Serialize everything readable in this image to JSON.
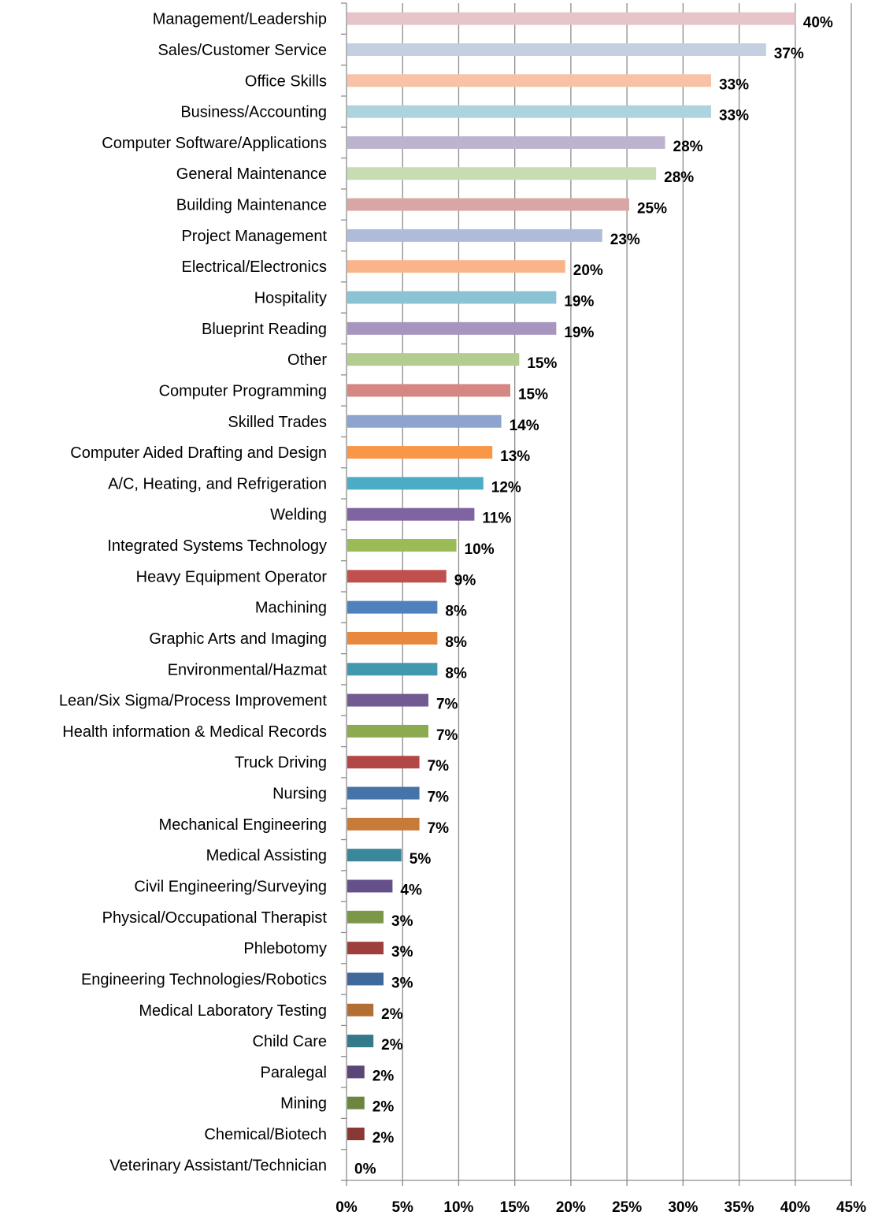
{
  "chart_data": {
    "type": "bar",
    "orientation": "horizontal",
    "title": "",
    "xlabel": "",
    "ylabel": "",
    "xlim": [
      0,
      45
    ],
    "x_ticks": [
      "0%",
      "5%",
      "10%",
      "15%",
      "20%",
      "25%",
      "30%",
      "35%",
      "40%",
      "45%"
    ],
    "grid": "vertical major gridlines",
    "legend": "none",
    "categories": [
      "Management/Leadership",
      "Sales/Customer Service",
      "Office Skills",
      "Business/Accounting",
      "Computer Software/Applications",
      "General Maintenance",
      "Building Maintenance",
      "Project Management",
      "Electrical/Electronics",
      "Hospitality",
      "Blueprint Reading",
      "Other",
      "Computer Programming",
      "Skilled Trades",
      "Computer Aided Drafting and Design",
      "A/C, Heating, and Refrigeration",
      "Welding",
      "Integrated Systems Technology",
      "Heavy Equipment Operator",
      "Machining",
      "Graphic Arts and Imaging",
      "Environmental/Hazmat",
      "Lean/Six Sigma/Process Improvement",
      "Health information & Medical Records",
      "Truck Driving",
      "Nursing",
      "Mechanical Engineering",
      "Medical Assisting",
      "Civil Engineering/Surveying",
      "Physical/Occupational Therapist",
      "Phlebotomy",
      "Engineering Technologies/Robotics",
      "Medical Laboratory Testing",
      "Child Care",
      "Paralegal",
      "Mining",
      "Chemical/Biotech",
      "Veterinary Assistant/Technician"
    ],
    "values": [
      40,
      37.4,
      32.5,
      32.5,
      28.4,
      27.6,
      25.2,
      22.8,
      19.5,
      18.7,
      18.7,
      15.4,
      14.6,
      13.8,
      13.0,
      12.2,
      11.4,
      9.8,
      8.9,
      8.1,
      8.1,
      8.1,
      7.3,
      7.3,
      6.5,
      6.5,
      6.5,
      4.9,
      4.1,
      3.3,
      3.3,
      3.3,
      2.4,
      2.4,
      1.6,
      1.6,
      1.6,
      0
    ],
    "value_labels": [
      "40%",
      "37%",
      "33%",
      "33%",
      "28%",
      "28%",
      "25%",
      "23%",
      "20%",
      "19%",
      "19%",
      "15%",
      "15%",
      "14%",
      "13%",
      "12%",
      "11%",
      "10%",
      "9%",
      "8%",
      "8%",
      "8%",
      "7%",
      "7%",
      "7%",
      "7%",
      "7%",
      "5%",
      "4%",
      "3%",
      "3%",
      "3%",
      "2%",
      "2%",
      "2%",
      "2%",
      "2%",
      "0%"
    ],
    "colors": [
      "#e6c4c9",
      "#c4cfe1",
      "#f8c2a6",
      "#add3df",
      "#bdb3cf",
      "#c8dcb3",
      "#d9a6a6",
      "#aebbd9",
      "#f9b48a",
      "#8ac3d3",
      "#a795bf",
      "#b2cd8f",
      "#d48783",
      "#8ca4cf",
      "#f79747",
      "#4bacc6",
      "#8064a2",
      "#9bbb59",
      "#c0504d",
      "#4f81bd",
      "#e8883f",
      "#4198af",
      "#735a93",
      "#8caa50",
      "#b14845",
      "#4674aa",
      "#c87b38",
      "#3a879c",
      "#66508a",
      "#7c9747",
      "#9d403d",
      "#3f689c",
      "#b36e33",
      "#34798c",
      "#5a4777",
      "#6d853e",
      "#8a3835",
      "#375b88"
    ]
  }
}
